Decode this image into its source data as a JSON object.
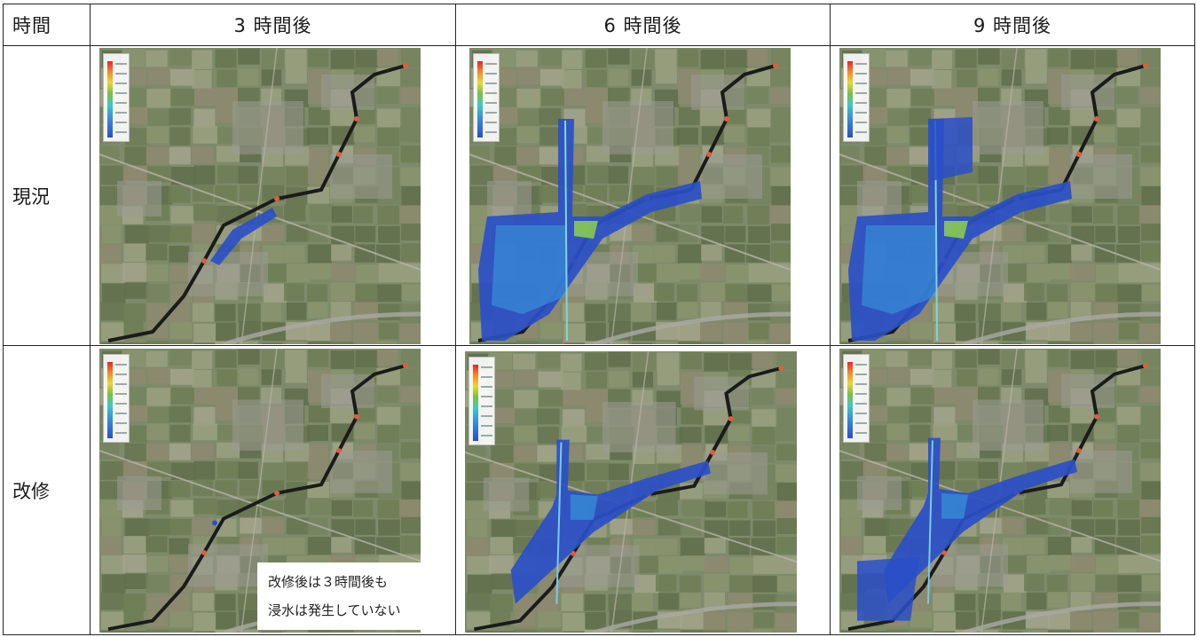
{
  "table": {
    "headers": [
      "時間",
      "3 時間後",
      "6 時間後",
      "9 時間後"
    ],
    "rows": [
      {
        "label": "現況",
        "panels": [
          "map-current-3h",
          "map-current-6h",
          "map-current-9h"
        ]
      },
      {
        "label": "改修",
        "panels": [
          "map-improved-3h",
          "map-improved-6h",
          "map-improved-9h"
        ]
      }
    ]
  },
  "note": {
    "line1": "改修後は３時間後も",
    "line2": "浸水は発生していない"
  },
  "colors": {
    "flood_shallow": "#2a4fc8",
    "flood_mid": "#3a9ee0",
    "flood_high": "#8fd14a",
    "river": "#1b1b1b",
    "ground": "#7e8a6a"
  }
}
